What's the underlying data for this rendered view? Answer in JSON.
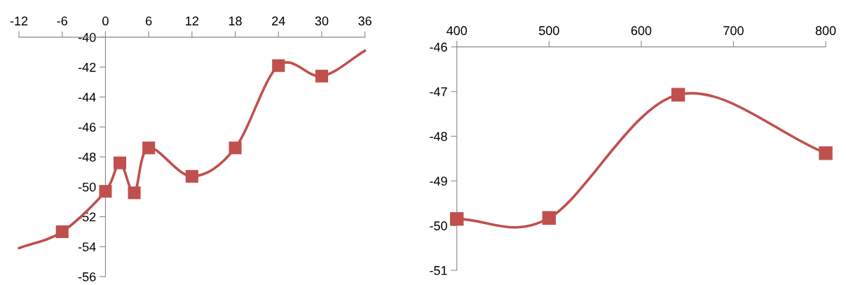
{
  "chart_data": [
    {
      "type": "line",
      "xlim": [
        -12,
        36
      ],
      "xticks": [
        -12,
        -6,
        0,
        6,
        12,
        18,
        24,
        30,
        36
      ],
      "ylim": [
        -56,
        -40
      ],
      "yticks": [
        -56,
        -54,
        -52,
        -50,
        -48,
        -46,
        -44,
        -42,
        -40
      ],
      "grid": false,
      "legend": false,
      "line_style": "solid",
      "series": [
        {
          "type": "line",
          "marker": "none",
          "color": "#c0504d",
          "x": [
            -12,
            -6,
            0,
            2,
            4,
            6,
            12,
            18,
            24,
            30,
            36
          ],
          "values": [
            -54.1,
            -53.0,
            -50.3,
            -48.4,
            -50.4,
            -47.4,
            -49.3,
            -47.4,
            -41.9,
            -42.6,
            -40.9
          ]
        },
        {
          "type": "scatter",
          "marker": "square",
          "color": "#c0504d",
          "x": [
            -6,
            0,
            2,
            4,
            6,
            12,
            18,
            24,
            30
          ],
          "values": [
            -53.0,
            -50.3,
            -48.4,
            -50.4,
            -47.4,
            -49.3,
            -47.4,
            -41.9,
            -42.6
          ]
        }
      ]
    },
    {
      "type": "line",
      "xlim": [
        400,
        800
      ],
      "xticks": [
        400,
        500,
        600,
        700,
        800
      ],
      "ylim": [
        -51,
        -46
      ],
      "yticks": [
        -51,
        -50,
        -49,
        -48,
        -47,
        -46
      ],
      "grid": false,
      "legend": false,
      "line_style": "solid",
      "marker": "square",
      "series": [
        {
          "color": "#c0504d",
          "x": [
            400,
            500,
            640,
            800
          ],
          "values": [
            -49.85,
            -49.83,
            -47.07,
            -48.38
          ]
        }
      ]
    }
  ]
}
